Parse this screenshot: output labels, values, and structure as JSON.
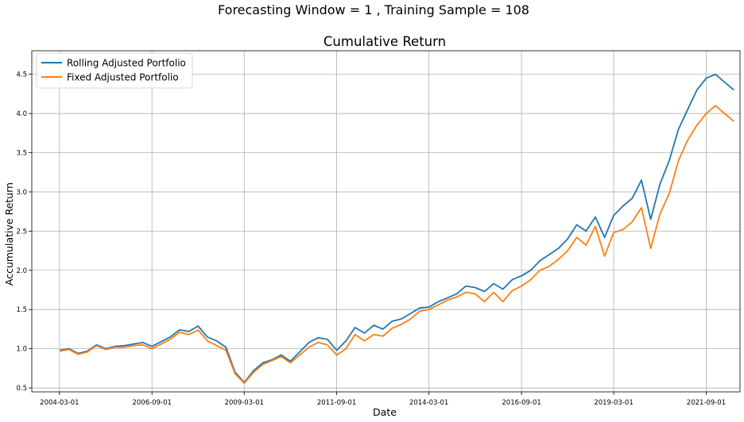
{
  "chart_data": {
    "type": "line",
    "suptitle": "Forecasting Window = 1 , Training Sample = 108",
    "title": "Cumulative Return",
    "xlabel": "Date",
    "ylabel": "Accumulative Return",
    "xlim": [
      "2003-06-01",
      "2022-08-01"
    ],
    "ylim": [
      0.45,
      4.8
    ],
    "grid": true,
    "legend_position": "top-left",
    "x_ticks": [
      "2004-03-01",
      "2006-09-01",
      "2009-03-01",
      "2011-09-01",
      "2014-03-01",
      "2016-09-01",
      "2019-03-01",
      "2021-09-01"
    ],
    "y_ticks": [
      "0.5",
      "1.0",
      "1.5",
      "2.0",
      "2.5",
      "3.0",
      "3.5",
      "4.0",
      "4.5"
    ],
    "series": [
      {
        "name": "Rolling Adjusted Portfolio",
        "color": "#1f77b4",
        "points": [
          [
            "2004-03-01",
            0.98
          ],
          [
            "2004-06-01",
            1.0
          ],
          [
            "2004-09-01",
            0.94
          ],
          [
            "2004-12-01",
            0.97
          ],
          [
            "2005-03-01",
            1.05
          ],
          [
            "2005-06-01",
            1.0
          ],
          [
            "2005-09-01",
            1.03
          ],
          [
            "2005-12-01",
            1.04
          ],
          [
            "2006-03-01",
            1.06
          ],
          [
            "2006-06-01",
            1.08
          ],
          [
            "2006-09-01",
            1.03
          ],
          [
            "2006-12-01",
            1.09
          ],
          [
            "2007-03-01",
            1.15
          ],
          [
            "2007-06-01",
            1.24
          ],
          [
            "2007-09-01",
            1.22
          ],
          [
            "2007-12-01",
            1.29
          ],
          [
            "2008-03-01",
            1.15
          ],
          [
            "2008-06-01",
            1.1
          ],
          [
            "2008-09-01",
            1.02
          ],
          [
            "2008-12-01",
            0.7
          ],
          [
            "2009-03-01",
            0.57
          ],
          [
            "2009-06-01",
            0.72
          ],
          [
            "2009-09-01",
            0.82
          ],
          [
            "2009-12-01",
            0.86
          ],
          [
            "2010-03-01",
            0.92
          ],
          [
            "2010-06-01",
            0.84
          ],
          [
            "2010-09-01",
            0.96
          ],
          [
            "2010-12-01",
            1.08
          ],
          [
            "2011-03-01",
            1.14
          ],
          [
            "2011-06-01",
            1.12
          ],
          [
            "2011-09-01",
            0.98
          ],
          [
            "2011-12-01",
            1.1
          ],
          [
            "2012-03-01",
            1.27
          ],
          [
            "2012-06-01",
            1.2
          ],
          [
            "2012-09-01",
            1.3
          ],
          [
            "2012-12-01",
            1.25
          ],
          [
            "2013-03-01",
            1.35
          ],
          [
            "2013-06-01",
            1.38
          ],
          [
            "2013-09-01",
            1.45
          ],
          [
            "2013-12-01",
            1.52
          ],
          [
            "2014-03-01",
            1.53
          ],
          [
            "2014-06-01",
            1.6
          ],
          [
            "2014-09-01",
            1.65
          ],
          [
            "2014-12-01",
            1.7
          ],
          [
            "2015-03-01",
            1.8
          ],
          [
            "2015-06-01",
            1.78
          ],
          [
            "2015-09-01",
            1.73
          ],
          [
            "2015-12-01",
            1.83
          ],
          [
            "2016-03-01",
            1.76
          ],
          [
            "2016-06-01",
            1.88
          ],
          [
            "2016-09-01",
            1.93
          ],
          [
            "2016-12-01",
            2.0
          ],
          [
            "2017-03-01",
            2.12
          ],
          [
            "2017-06-01",
            2.2
          ],
          [
            "2017-09-01",
            2.28
          ],
          [
            "2017-12-01",
            2.4
          ],
          [
            "2018-03-01",
            2.58
          ],
          [
            "2018-06-01",
            2.5
          ],
          [
            "2018-09-01",
            2.68
          ],
          [
            "2018-12-01",
            2.42
          ],
          [
            "2019-03-01",
            2.7
          ],
          [
            "2019-06-01",
            2.82
          ],
          [
            "2019-09-01",
            2.92
          ],
          [
            "2019-12-01",
            3.15
          ],
          [
            "2020-03-01",
            2.65
          ],
          [
            "2020-06-01",
            3.1
          ],
          [
            "2020-09-01",
            3.4
          ],
          [
            "2020-12-01",
            3.8
          ],
          [
            "2021-03-01",
            4.05
          ],
          [
            "2021-06-01",
            4.3
          ],
          [
            "2021-09-01",
            4.45
          ],
          [
            "2021-12-01",
            4.5
          ],
          [
            "2022-03-01",
            4.4
          ],
          [
            "2022-06-01",
            4.3
          ]
        ]
      },
      {
        "name": "Fixed Adjusted Portfolio",
        "color": "#ff7f0e",
        "points": [
          [
            "2004-03-01",
            0.97
          ],
          [
            "2004-06-01",
            0.99
          ],
          [
            "2004-09-01",
            0.93
          ],
          [
            "2004-12-01",
            0.96
          ],
          [
            "2005-03-01",
            1.04
          ],
          [
            "2005-06-01",
            0.99
          ],
          [
            "2005-09-01",
            1.02
          ],
          [
            "2005-12-01",
            1.02
          ],
          [
            "2006-03-01",
            1.04
          ],
          [
            "2006-06-01",
            1.05
          ],
          [
            "2006-09-01",
            1.0
          ],
          [
            "2006-12-01",
            1.06
          ],
          [
            "2007-03-01",
            1.12
          ],
          [
            "2007-06-01",
            1.21
          ],
          [
            "2007-09-01",
            1.18
          ],
          [
            "2007-12-01",
            1.24
          ],
          [
            "2008-03-01",
            1.1
          ],
          [
            "2008-06-01",
            1.04
          ],
          [
            "2008-09-01",
            0.98
          ],
          [
            "2008-12-01",
            0.68
          ],
          [
            "2009-03-01",
            0.56
          ],
          [
            "2009-06-01",
            0.7
          ],
          [
            "2009-09-01",
            0.8
          ],
          [
            "2009-12-01",
            0.85
          ],
          [
            "2010-03-01",
            0.9
          ],
          [
            "2010-06-01",
            0.82
          ],
          [
            "2010-09-01",
            0.92
          ],
          [
            "2010-12-01",
            1.02
          ],
          [
            "2011-03-01",
            1.08
          ],
          [
            "2011-06-01",
            1.05
          ],
          [
            "2011-09-01",
            0.92
          ],
          [
            "2011-12-01",
            1.0
          ],
          [
            "2012-03-01",
            1.18
          ],
          [
            "2012-06-01",
            1.1
          ],
          [
            "2012-09-01",
            1.18
          ],
          [
            "2012-12-01",
            1.16
          ],
          [
            "2013-03-01",
            1.26
          ],
          [
            "2013-06-01",
            1.31
          ],
          [
            "2013-09-01",
            1.38
          ],
          [
            "2013-12-01",
            1.48
          ],
          [
            "2014-03-01",
            1.5
          ],
          [
            "2014-06-01",
            1.56
          ],
          [
            "2014-09-01",
            1.62
          ],
          [
            "2014-12-01",
            1.66
          ],
          [
            "2015-03-01",
            1.72
          ],
          [
            "2015-06-01",
            1.7
          ],
          [
            "2015-09-01",
            1.6
          ],
          [
            "2015-12-01",
            1.72
          ],
          [
            "2016-03-01",
            1.6
          ],
          [
            "2016-06-01",
            1.74
          ],
          [
            "2016-09-01",
            1.8
          ],
          [
            "2016-12-01",
            1.88
          ],
          [
            "2017-03-01",
            2.0
          ],
          [
            "2017-06-01",
            2.05
          ],
          [
            "2017-09-01",
            2.14
          ],
          [
            "2017-12-01",
            2.25
          ],
          [
            "2018-03-01",
            2.42
          ],
          [
            "2018-06-01",
            2.32
          ],
          [
            "2018-09-01",
            2.56
          ],
          [
            "2018-12-01",
            2.18
          ],
          [
            "2019-03-01",
            2.48
          ],
          [
            "2019-06-01",
            2.52
          ],
          [
            "2019-09-01",
            2.62
          ],
          [
            "2019-12-01",
            2.8
          ],
          [
            "2020-03-01",
            2.28
          ],
          [
            "2020-06-01",
            2.72
          ],
          [
            "2020-09-01",
            2.98
          ],
          [
            "2020-12-01",
            3.4
          ],
          [
            "2021-03-01",
            3.66
          ],
          [
            "2021-06-01",
            3.85
          ],
          [
            "2021-09-01",
            4.0
          ],
          [
            "2021-12-01",
            4.1
          ],
          [
            "2022-03-01",
            4.0
          ],
          [
            "2022-06-01",
            3.9
          ]
        ]
      }
    ]
  }
}
